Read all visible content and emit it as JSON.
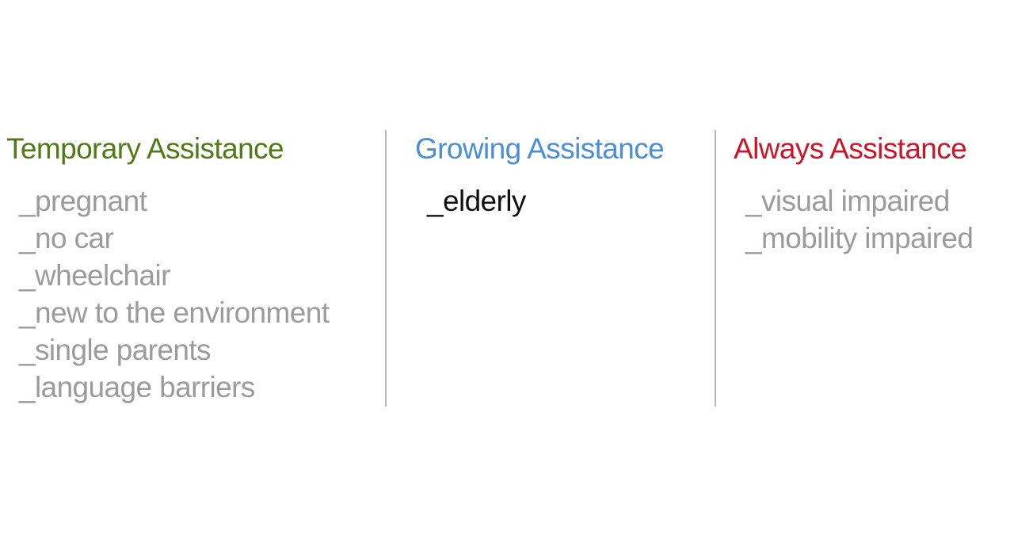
{
  "columns": [
    {
      "heading": "Temporary Assistance",
      "heading_color": "#4f7a14",
      "item_color": "#9b9b9b",
      "items": [
        "_pregnant",
        "_no car",
        "_wheelchair",
        "_new to the environment",
        "_single parents",
        "_language barriers"
      ]
    },
    {
      "heading": "Growing Assistance",
      "heading_color": "#4a8fd6",
      "item_color": "#111111",
      "items": [
        "_elderly"
      ]
    },
    {
      "heading": "Always Assistance",
      "heading_color": "#cc1426",
      "item_color": "#9b9b9b",
      "items": [
        "_visual impaired",
        "_mobility impaired"
      ]
    }
  ]
}
